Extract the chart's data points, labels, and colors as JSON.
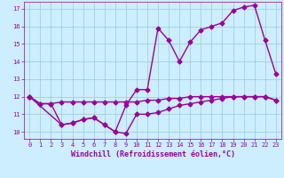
{
  "line1_x": [
    0,
    1,
    2,
    3,
    4,
    5,
    6,
    7,
    8,
    9,
    10,
    11,
    12,
    13,
    14,
    15,
    16,
    17,
    18,
    19,
    20,
    21,
    22,
    23
  ],
  "line1_y": [
    12.0,
    11.6,
    11.6,
    11.7,
    11.7,
    11.7,
    11.7,
    11.7,
    11.7,
    11.7,
    11.7,
    11.8,
    11.8,
    11.9,
    11.9,
    12.0,
    12.0,
    12.0,
    12.0,
    12.0,
    12.0,
    12.0,
    12.0,
    11.8
  ],
  "line2_x": [
    0,
    1,
    2,
    3,
    4,
    5,
    6,
    7,
    8,
    9,
    10,
    11,
    12,
    13,
    14,
    15,
    16,
    17,
    18,
    19,
    20,
    21,
    22,
    23
  ],
  "line2_y": [
    12.0,
    11.6,
    11.6,
    10.4,
    10.5,
    10.7,
    10.8,
    10.4,
    10.0,
    9.9,
    11.0,
    11.0,
    11.1,
    11.3,
    11.5,
    11.6,
    11.7,
    11.8,
    11.9,
    12.0,
    12.0,
    12.0,
    12.0,
    11.8
  ],
  "line3_x": [
    0,
    3,
    4,
    5,
    6,
    7,
    8,
    9,
    10,
    11,
    12,
    13,
    14,
    15,
    16,
    17,
    18,
    19,
    20,
    21,
    22,
    23
  ],
  "line3_y": [
    12.0,
    10.4,
    10.5,
    10.7,
    10.8,
    10.4,
    10.0,
    11.5,
    12.4,
    12.4,
    15.9,
    15.2,
    14.0,
    15.1,
    15.8,
    16.0,
    16.2,
    16.9,
    17.1,
    17.2,
    15.2,
    13.3
  ],
  "line_color": "#990099",
  "bg_color": "#cceeff",
  "grid_color": "#99cccc",
  "xlabel": "Windchill (Refroidissement éolien,°C)",
  "xlim": [
    -0.5,
    23.5
  ],
  "ylim": [
    9.6,
    17.4
  ],
  "xticks": [
    0,
    1,
    2,
    3,
    4,
    5,
    6,
    7,
    8,
    9,
    10,
    11,
    12,
    13,
    14,
    15,
    16,
    17,
    18,
    19,
    20,
    21,
    22,
    23
  ],
  "yticks": [
    10,
    11,
    12,
    13,
    14,
    15,
    16,
    17
  ],
  "marker": "D",
  "markersize": 2.5,
  "linewidth": 1.0
}
